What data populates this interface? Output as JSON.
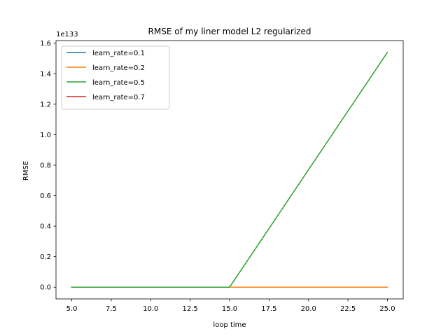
{
  "chart_data": {
    "type": "line",
    "title": "RMSE of my liner model L2 regularized",
    "xlabel": "loop time",
    "ylabel": "RMSE",
    "y_offset_text": "1e133",
    "xlim": [
      4.0,
      26.0
    ],
    "ylim": [
      -0.077,
      1.617
    ],
    "x_ticks": [
      5.0,
      7.5,
      10.0,
      12.5,
      15.0,
      17.5,
      20.0,
      22.5,
      25.0
    ],
    "x_tick_labels": [
      "5.0",
      "7.5",
      "10.0",
      "12.5",
      "15.0",
      "17.5",
      "20.0",
      "22.5",
      "25.0"
    ],
    "y_ticks": [
      0.0,
      0.2,
      0.4,
      0.6,
      0.8,
      1.0,
      1.2,
      1.4,
      1.6
    ],
    "y_tick_labels": [
      "0.0",
      "0.2",
      "0.4",
      "0.6",
      "0.8",
      "1.0",
      "1.2",
      "1.4",
      "1.6"
    ],
    "grid": false,
    "legend_placement": "upper-left",
    "series": [
      {
        "name": "learn_rate=0.1",
        "color": "#1f77b4",
        "x": [
          5,
          15,
          25
        ],
        "values": [
          0,
          0,
          0
        ]
      },
      {
        "name": "learn_rate=0.2",
        "color": "#ff7f0e",
        "x": [
          5,
          15,
          25
        ],
        "values": [
          0,
          0,
          0
        ]
      },
      {
        "name": "learn_rate=0.5",
        "color": "#2ca02c",
        "x": [
          5,
          15,
          25
        ],
        "values": [
          0,
          0,
          1.54
        ]
      },
      {
        "name": "learn_rate=0.7",
        "color": "#d62728",
        "x": [
          5,
          15,
          25
        ],
        "values": [
          null,
          null,
          null
        ]
      }
    ]
  }
}
